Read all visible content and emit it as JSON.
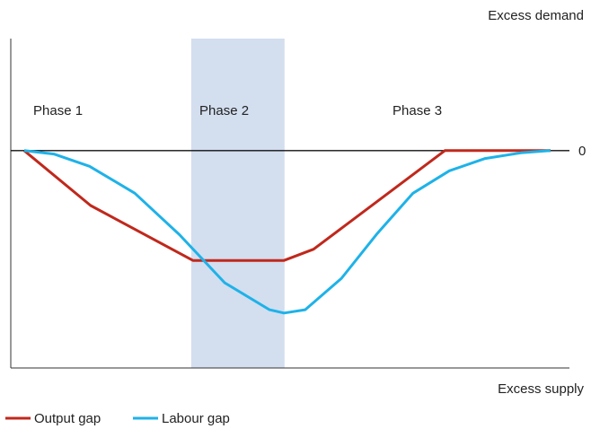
{
  "chart_data": {
    "type": "line",
    "y_top_label": "Excess demand",
    "y_bottom_label": "Excess supply",
    "annotations": [
      "Phase 1",
      "Phase 2",
      "Phase 3"
    ],
    "shaded_region": [
      32.3,
      49.0
    ],
    "shaded_color": "#d3deef",
    "xlim": [
      0,
      100
    ],
    "ylim": [
      -1.94,
      1
    ],
    "yticks": [
      0
    ],
    "series": [
      {
        "name": "Output gap",
        "color": "#c0281c",
        "x": [
          2.4,
          14.3,
          32.6,
          48.9,
          54.2,
          77.7,
          96.6
        ],
        "values": [
          0,
          -0.49,
          -0.98,
          -0.98,
          -0.88,
          0,
          0
        ]
      },
      {
        "name": "Labour gap",
        "color": "#1eb2e8",
        "x": [
          2.4,
          7.7,
          14.1,
          22.2,
          30.2,
          38.3,
          46.3,
          48.9,
          52.7,
          59.2,
          65.6,
          72.0,
          78.5,
          84.9,
          91.3,
          96.6
        ],
        "values": [
          0,
          -0.03,
          -0.14,
          -0.38,
          -0.75,
          -1.18,
          -1.42,
          -1.45,
          -1.42,
          -1.14,
          -0.74,
          -0.38,
          -0.18,
          -0.07,
          -0.02,
          0
        ]
      }
    ]
  }
}
